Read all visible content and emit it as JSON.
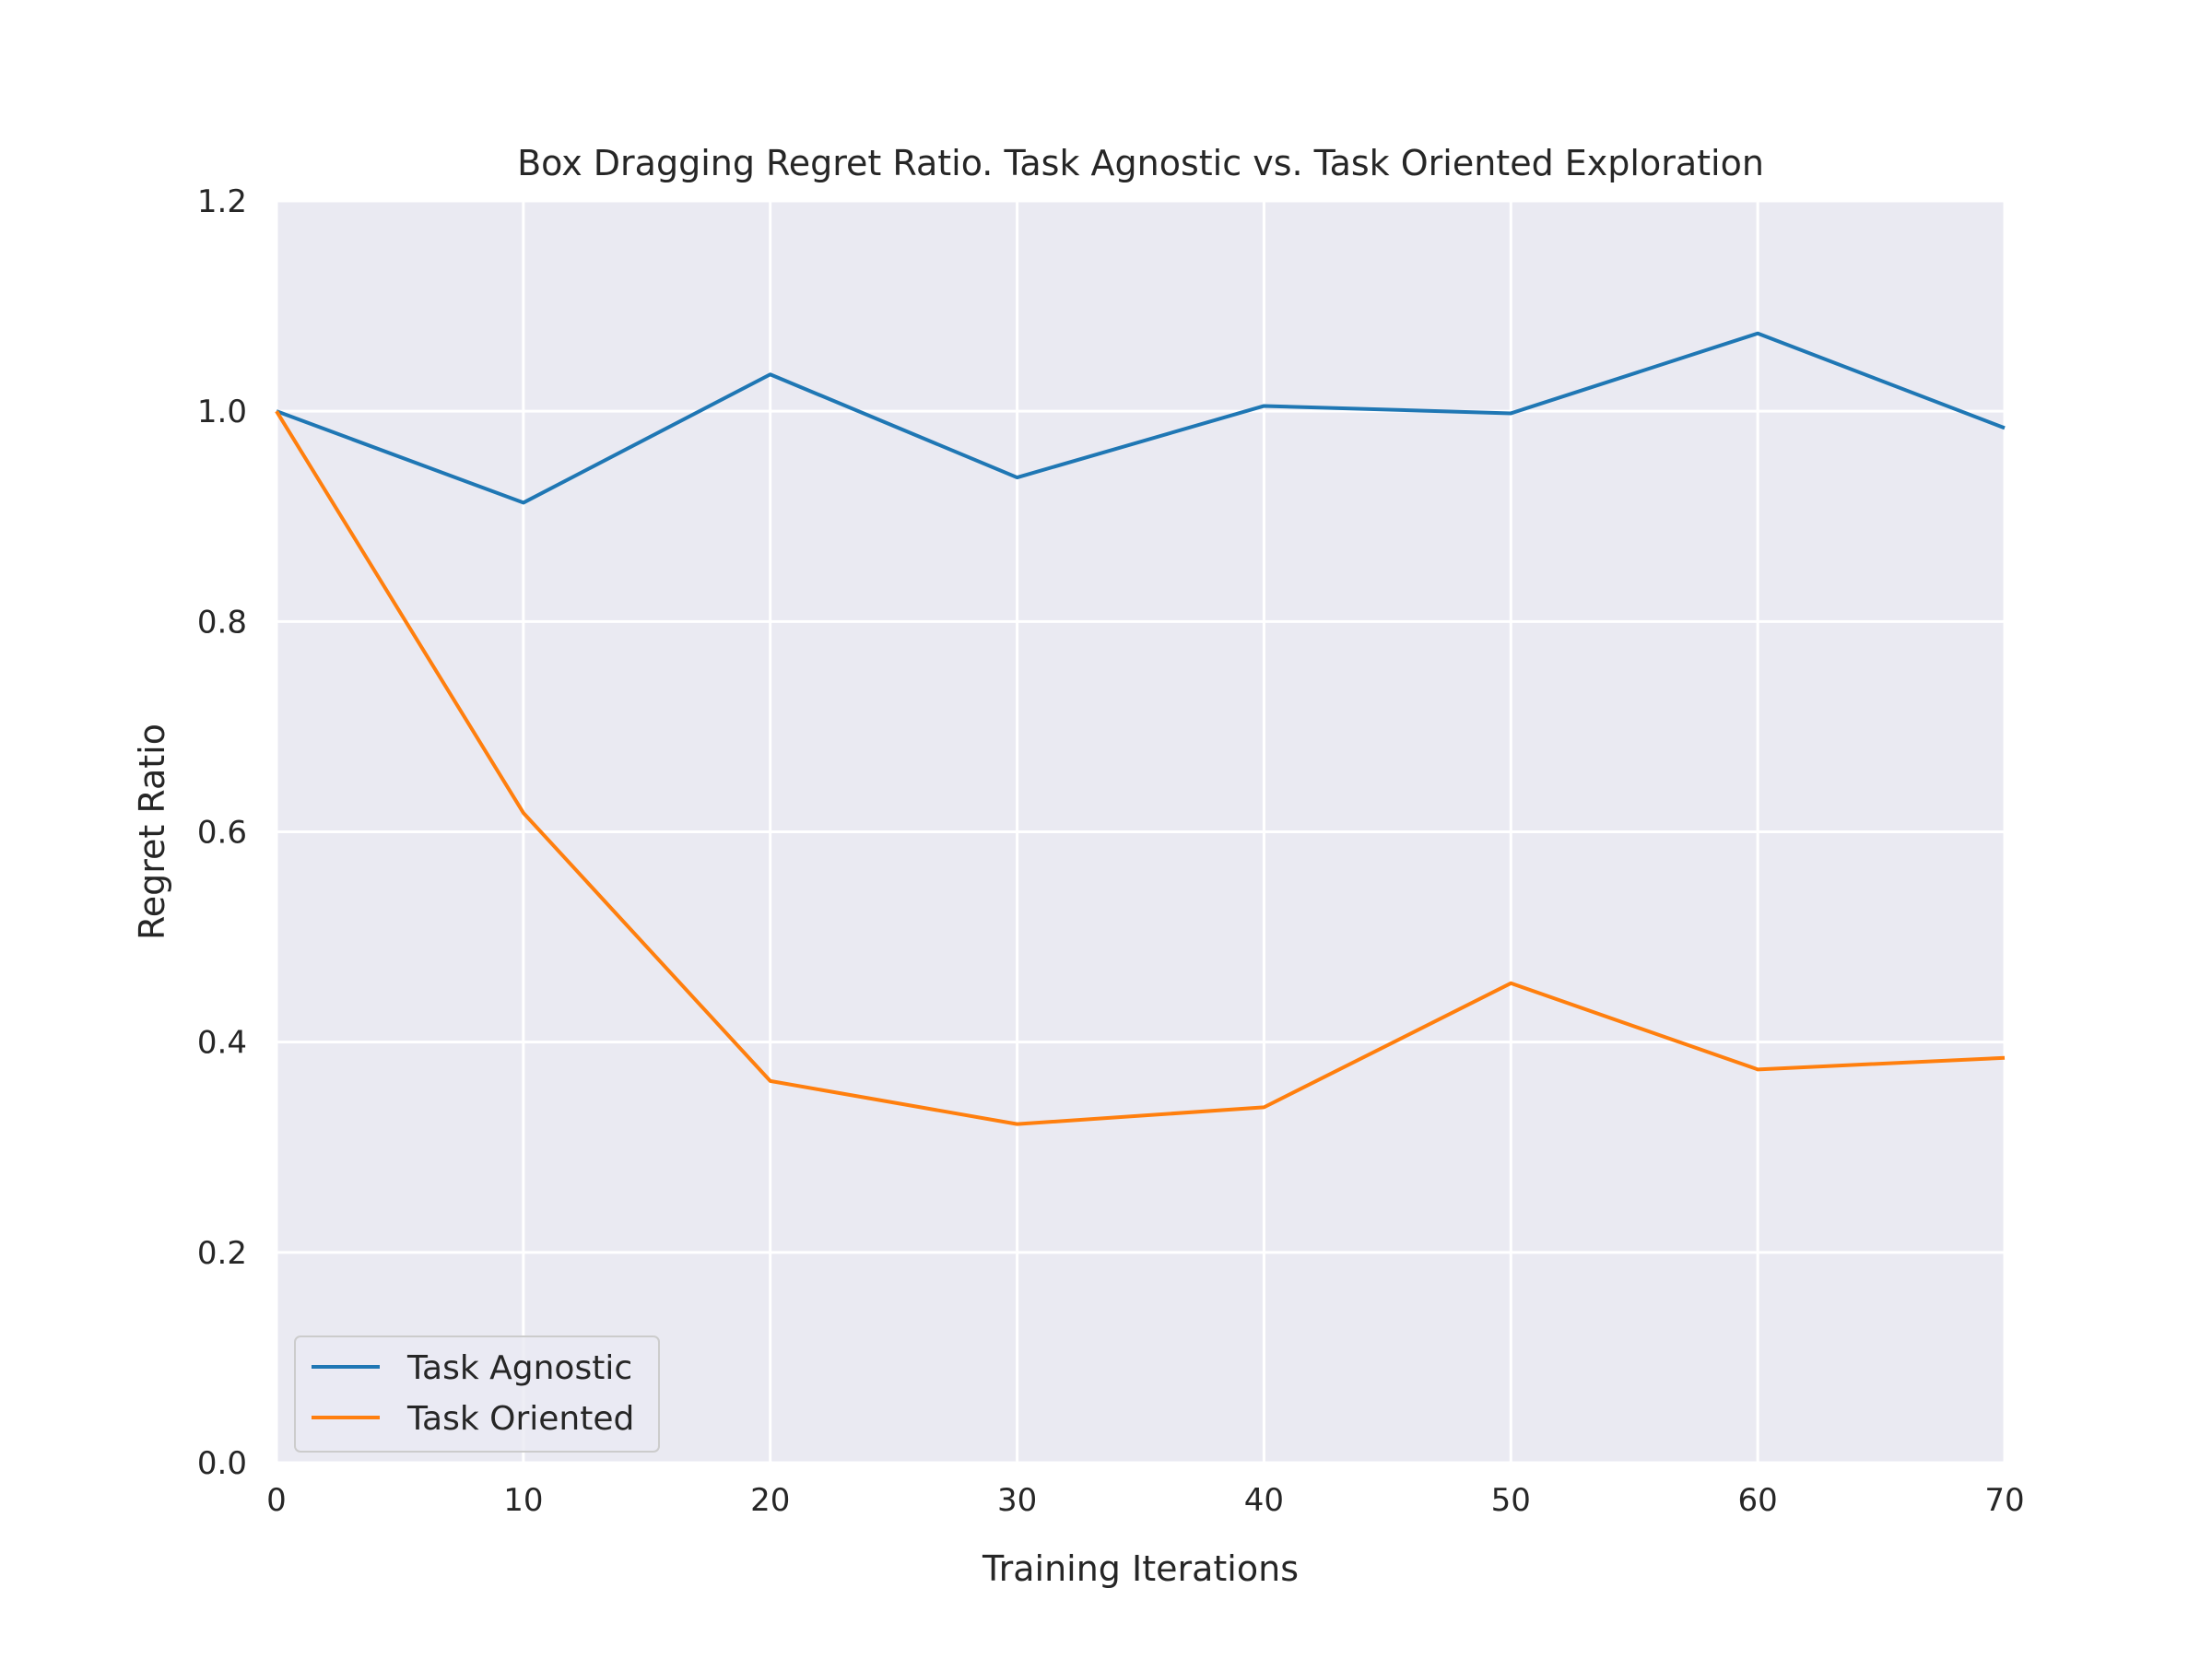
{
  "chart_data": {
    "type": "line",
    "title": "Box Dragging Regret Ratio. Task Agnostic vs. Task Oriented Exploration",
    "xlabel": "Training Iterations",
    "ylabel": "Regret Ratio",
    "x": [
      0,
      10,
      20,
      30,
      40,
      50,
      60,
      70
    ],
    "xlim": [
      0,
      70
    ],
    "ylim": [
      0.0,
      1.2
    ],
    "xticks": [
      "0",
      "10",
      "20",
      "30",
      "40",
      "50",
      "60",
      "70"
    ],
    "yticks": [
      "0.0",
      "0.2",
      "0.4",
      "0.6",
      "0.8",
      "1.0",
      "1.2"
    ],
    "grid": true,
    "legend_position": "lower-left",
    "series": [
      {
        "name": "Task Agnostic",
        "color": "#1f77b4",
        "values": [
          1.0,
          0.913,
          1.035,
          0.937,
          1.005,
          0.998,
          1.074,
          0.984
        ]
      },
      {
        "name": "Task Oriented",
        "color": "#ff7f0e",
        "values": [
          1.0,
          0.618,
          0.363,
          0.322,
          0.338,
          0.456,
          0.374,
          0.385
        ]
      }
    ],
    "background_color": "#eaeaf2"
  }
}
